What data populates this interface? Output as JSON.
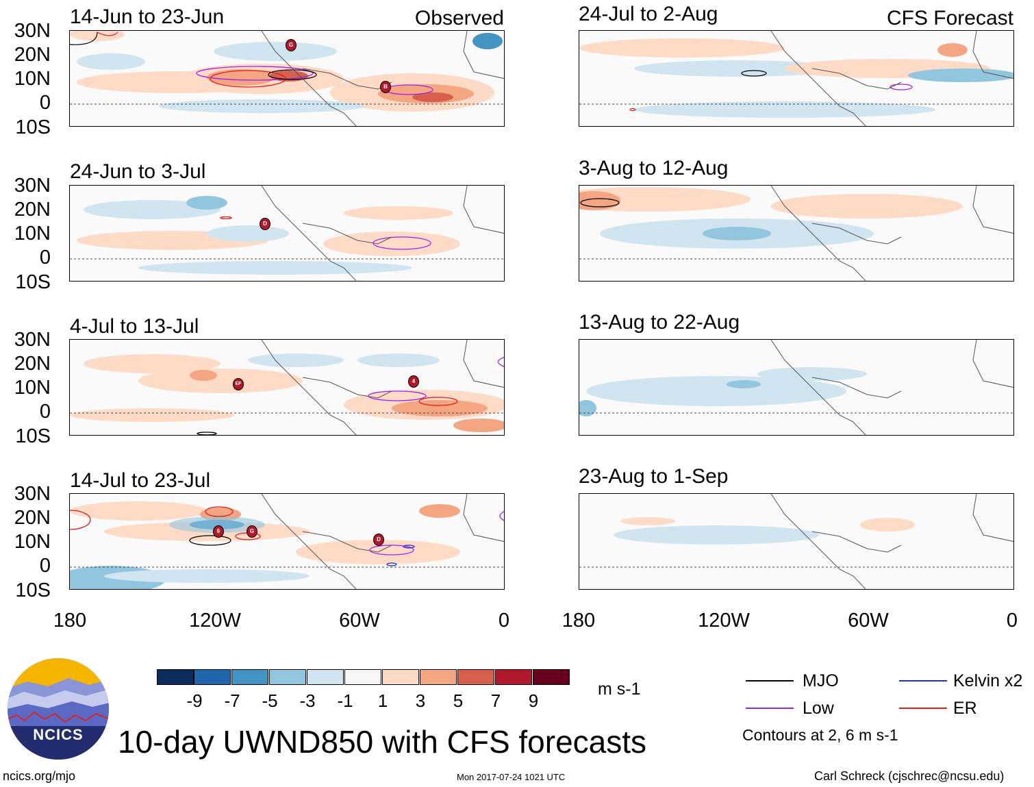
{
  "observed_label": "Observed",
  "forecast_label": "CFS Forecast",
  "panels_left": [
    {
      "period": "14-Jun to 23-Jun"
    },
    {
      "period": "24-Jun to 3-Jul"
    },
    {
      "period": "4-Jul to 13-Jul"
    },
    {
      "period": "14-Jul to 23-Jul"
    }
  ],
  "panels_right": [
    {
      "period": "24-Jul to 2-Aug"
    },
    {
      "period": "3-Aug to 12-Aug"
    },
    {
      "period": "13-Aug to 22-Aug"
    },
    {
      "period": "23-Aug to 1-Sep"
    }
  ],
  "lat_labels": [
    "30N",
    "20N",
    "10N",
    "0",
    "10S"
  ],
  "lon_labels": [
    "180",
    "120W",
    "60W",
    "0"
  ],
  "colorbar": {
    "unit": "m s-1",
    "colors": [
      "#0b2c5c",
      "#2166ac",
      "#4393c3",
      "#92c5de",
      "#d1e5f0",
      "#f7f7f7",
      "#fddbc7",
      "#f4a582",
      "#d6604d",
      "#b2182b",
      "#67001f"
    ],
    "labels": [
      "-9",
      "-7",
      "-5",
      "-3",
      "-1",
      "1",
      "3",
      "5",
      "7",
      "9"
    ]
  },
  "legend": {
    "items": [
      {
        "label": "MJO",
        "color": "#000000"
      },
      {
        "label": "Kelvin x2",
        "color": "#1f2fd6"
      },
      {
        "label": "Low",
        "color": "#a020f0"
      },
      {
        "label": "ER",
        "color": "#e41a1c"
      }
    ],
    "note": "Contours at 2, 6 m s-1"
  },
  "main_title": "10-day UWND850 with CFS forecasts",
  "logo_text": "NCICS",
  "footer": {
    "site": "ncics.org/mjo",
    "timestamp": "Mon 2017-07-24 1021 UTC",
    "author": "Carl Schreck (cjschrec@ncsu.edu)"
  },
  "storm_markers": [
    {
      "panel": "left-1",
      "letter": "G"
    },
    {
      "panel": "left-1",
      "letter": "B"
    },
    {
      "panel": "left-2",
      "letter": "D"
    },
    {
      "panel": "left-3",
      "letter": "EF"
    },
    {
      "panel": "left-3",
      "letter": "4"
    },
    {
      "panel": "left-4",
      "letter": "6"
    },
    {
      "panel": "left-4",
      "letter": "G"
    },
    {
      "panel": "left-4",
      "letter": "D"
    }
  ]
}
